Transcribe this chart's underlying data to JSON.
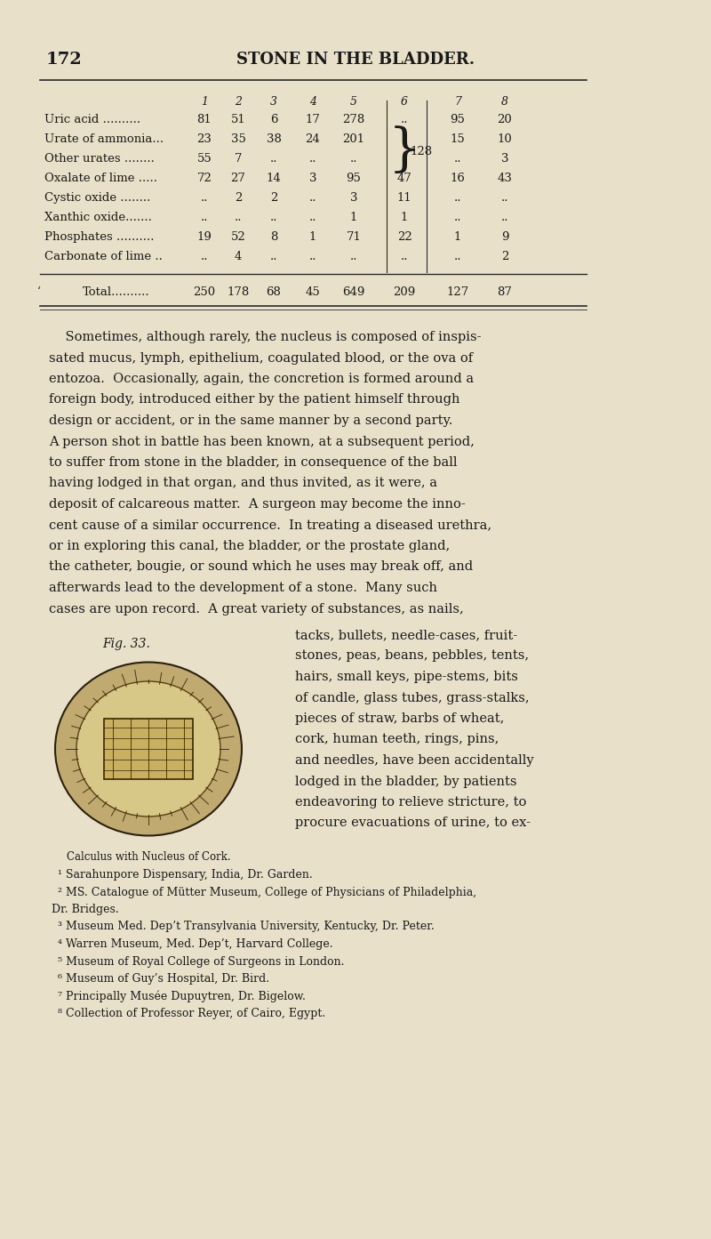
{
  "page_number": "172",
  "page_title": "STONE IN THE BLADDER.",
  "bg_color": "#e8e0c8",
  "table": {
    "col_headers": [
      "",
      "1",
      "2",
      "3",
      "4",
      "5",
      "6",
      "7",
      "8"
    ],
    "rows": [
      {
        "label": "Uric acid ..........",
        "vals": [
          "81",
          "51",
          "6",
          "17",
          "278",
          "..",
          "95",
          "20"
        ]
      },
      {
        "label": "Urate of ammonia...",
        "vals": [
          "23",
          "35",
          "38",
          "24",
          "201",
          "",
          "15",
          "10"
        ]
      },
      {
        "label": "Other urates ........",
        "vals": [
          "55",
          "7",
          "..",
          "..",
          "..",
          "",
          "..",
          "3"
        ]
      },
      {
        "label": "Oxalate of lime .....",
        "vals": [
          "72",
          "27",
          "14",
          "3",
          "95",
          "47",
          "16",
          "43"
        ]
      },
      {
        "label": "Cystic oxide ........",
        "vals": [
          "..",
          "2",
          "2",
          "..",
          "3",
          "11",
          "..",
          ".."
        ]
      },
      {
        "label": "Xanthic oxide.......",
        "vals": [
          "..",
          "..",
          "..",
          "..",
          "1",
          "1",
          "..",
          ".."
        ]
      },
      {
        "label": "Phosphates ..........",
        "vals": [
          "19",
          "52",
          "8",
          "1",
          "71",
          "22",
          "1",
          "9"
        ]
      },
      {
        "label": "Carbonate of lime ..",
        "vals": [
          "..",
          "4",
          "..",
          "..",
          "..",
          "..",
          "..",
          "2"
        ]
      }
    ],
    "brace_rows": [
      1,
      2
    ],
    "brace_val": "128",
    "total_row": {
      "label": "Total..........",
      "vals": [
        "250",
        "178",
        "68",
        "45",
        "649",
        "209",
        "127",
        "87"
      ]
    }
  },
  "body_text": [
    "    Sometimes, although rarely, the nucleus is composed of inspis-",
    "sated mucus, lymph, epithelium, coagulated blood, or the ova of",
    "entozoa.  Occasionally, again, the concretion is formed around a",
    "foreign body, introduced either by the patient himself through",
    "design or accident, or in the same manner by a second party.",
    "A person shot in battle has been known, at a subsequent period,",
    "to suffer from stone in the bladder, in consequence of the ball",
    "having lodged in that organ, and thus invited, as it were, a",
    "deposit of calcareous matter.  A surgeon may become the inno-",
    "cent cause of a similar occurrence.  In treating a diseased urethra,",
    "or in exploring this canal, the bladder, or the prostate gland,",
    "the catheter, bougie, or sound which he uses may break off, and",
    "afterwards lead to the development of a stone.  Many such",
    "cases are upon record.  A great variety of substances, as nails,"
  ],
  "fig_caption": "Fig. 33.",
  "fig_subcaption": "Calculus with Nucleus of Cork.",
  "right_col_text": [
    "tacks, bullets, needle-cases, fruit-",
    "stones, peas, beans, pebbles, tents,",
    "hairs, small keys, pipe-stems, bits",
    "of candle, glass tubes, grass-stalks,",
    "pieces of straw, barbs of wheat,",
    "cork, human teeth, rings, pins,",
    "and needles, have been accidentally",
    "lodged in the bladder, by patients",
    "endeavoring to relieve stricture, to",
    "procure evacuations of urine, to ex-"
  ],
  "footnotes": [
    "¹ Sarahunpore Dispensary, India, Dr. Garden.",
    "² MS. Catalogue of Mütter Museum, College of Physicians of Philadelphia,",
    "Dr. Bridges.",
    "³ Museum Med. Dep’t Transylvania University, Kentucky, Dr. Peter.",
    "⁴ Warren Museum, Med. Dep’t, Harvard College.",
    "⁵ Museum of Royal College of Surgeons in London.",
    "⁶ Museum of Guy’s Hospital, Dr. Bird.",
    "⁷ Principally Musée Dupuytren, Dr. Bigelow.",
    "⁸ Collection of Professor Reyer, of Cairo, Egypt."
  ]
}
